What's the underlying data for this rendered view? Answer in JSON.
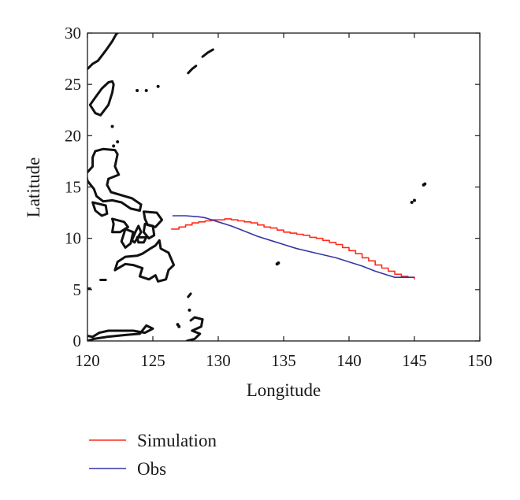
{
  "chart_data": {
    "type": "line",
    "xlabel": "Longitude",
    "ylabel": "Latitude",
    "xlim": [
      120,
      150
    ],
    "ylim": [
      0,
      30
    ],
    "xticks": [
      120,
      125,
      130,
      135,
      140,
      145,
      150
    ],
    "yticks": [
      0,
      5,
      10,
      15,
      20,
      25,
      30
    ],
    "grid": false,
    "legend_position": "bottom-left, below plot",
    "background_layer": "coastlines",
    "series": [
      {
        "name": "Simulation",
        "color": "#ff2a1a",
        "style": "stepped",
        "x": [
          126.4,
          127.0,
          127.5,
          128.0,
          128.5,
          129.0,
          129.5,
          130.0,
          130.5,
          131.0,
          131.5,
          132.0,
          132.5,
          133.0,
          133.5,
          134.0,
          134.5,
          135.0,
          135.5,
          136.0,
          136.5,
          137.0,
          137.5,
          138.0,
          138.5,
          139.0,
          139.5,
          140.0,
          140.5,
          141.0,
          141.5,
          142.0,
          142.5,
          143.0,
          143.5,
          144.0,
          144.5,
          145.0
        ],
        "y": [
          10.9,
          11.1,
          11.3,
          11.5,
          11.6,
          11.7,
          11.8,
          11.8,
          11.9,
          11.8,
          11.7,
          11.6,
          11.5,
          11.3,
          11.1,
          11.0,
          10.8,
          10.6,
          10.5,
          10.4,
          10.3,
          10.1,
          10.0,
          9.8,
          9.6,
          9.4,
          9.1,
          8.8,
          8.5,
          8.1,
          7.8,
          7.4,
          7.1,
          6.8,
          6.5,
          6.3,
          6.2,
          6.0
        ]
      },
      {
        "name": "Obs",
        "color": "#3535a8",
        "style": "smooth",
        "x": [
          126.5,
          127.5,
          128.5,
          129.0,
          129.5,
          130.0,
          131.0,
          132.0,
          133.0,
          134.0,
          135.0,
          136.0,
          137.0,
          138.0,
          139.0,
          140.0,
          141.0,
          142.0,
          143.0,
          143.5,
          144.0,
          145.0
        ],
        "y": [
          12.2,
          12.2,
          12.1,
          12.0,
          11.8,
          11.6,
          11.2,
          10.7,
          10.2,
          9.8,
          9.4,
          9.0,
          8.7,
          8.4,
          8.1,
          7.7,
          7.3,
          6.8,
          6.4,
          6.2,
          6.2,
          6.2
        ]
      }
    ]
  },
  "map": {
    "coastlines": [
      {
        "name": "taiwan",
        "closed": true,
        "points": [
          [
            121.9,
            25.3
          ],
          [
            121.6,
            25.2
          ],
          [
            121.1,
            24.6
          ],
          [
            120.7,
            23.9
          ],
          [
            120.2,
            23.0
          ],
          [
            120.6,
            22.2
          ],
          [
            121.0,
            22.0
          ],
          [
            121.6,
            23.0
          ],
          [
            121.9,
            24.2
          ],
          [
            122.0,
            25.0
          ]
        ]
      },
      {
        "name": "ryukyu-1",
        "closed": false,
        "points": [
          [
            127.7,
            26.1
          ],
          [
            128.0,
            26.5
          ],
          [
            128.3,
            26.8
          ]
        ]
      },
      {
        "name": "ryukyu-2",
        "closed": false,
        "points": [
          [
            128.8,
            27.7
          ],
          [
            129.2,
            28.1
          ],
          [
            129.6,
            28.4
          ]
        ]
      },
      {
        "name": "china-coast",
        "closed": false,
        "points": [
          [
            120.0,
            26.5
          ],
          [
            120.4,
            27.0
          ],
          [
            120.8,
            27.3
          ],
          [
            121.1,
            27.8
          ],
          [
            121.4,
            28.3
          ],
          [
            121.9,
            29.2
          ],
          [
            122.2,
            29.9
          ],
          [
            122.3,
            30.0
          ]
        ]
      },
      {
        "name": "luzon",
        "closed": true,
        "points": [
          [
            120.6,
            18.5
          ],
          [
            121.2,
            18.7
          ],
          [
            122.1,
            18.6
          ],
          [
            122.3,
            18.2
          ],
          [
            122.1,
            17.0
          ],
          [
            122.4,
            16.2
          ],
          [
            121.6,
            15.8
          ],
          [
            121.5,
            15.2
          ],
          [
            121.8,
            14.5
          ],
          [
            122.6,
            14.2
          ],
          [
            123.4,
            13.9
          ],
          [
            124.1,
            13.3
          ],
          [
            124.0,
            12.7
          ],
          [
            123.3,
            12.9
          ],
          [
            122.6,
            13.5
          ],
          [
            121.9,
            13.7
          ],
          [
            121.2,
            13.6
          ],
          [
            120.7,
            14.1
          ],
          [
            120.5,
            14.8
          ],
          [
            120.0,
            15.6
          ],
          [
            119.9,
            16.3
          ],
          [
            120.4,
            17.0
          ],
          [
            120.4,
            17.9
          ]
        ]
      },
      {
        "name": "mindoro",
        "closed": true,
        "points": [
          [
            120.4,
            13.5
          ],
          [
            121.4,
            13.2
          ],
          [
            121.5,
            12.4
          ],
          [
            121.1,
            12.2
          ],
          [
            120.6,
            12.7
          ]
        ]
      },
      {
        "name": "samar",
        "closed": true,
        "points": [
          [
            124.3,
            12.6
          ],
          [
            125.3,
            12.5
          ],
          [
            125.7,
            11.8
          ],
          [
            125.2,
            11.1
          ],
          [
            124.6,
            11.3
          ],
          [
            124.4,
            11.9
          ]
        ]
      },
      {
        "name": "leyte",
        "closed": true,
        "points": [
          [
            124.4,
            11.4
          ],
          [
            125.0,
            11.2
          ],
          [
            125.1,
            10.3
          ],
          [
            124.7,
            10.0
          ],
          [
            124.3,
            10.6
          ]
        ]
      },
      {
        "name": "panay",
        "closed": true,
        "points": [
          [
            121.9,
            11.9
          ],
          [
            122.8,
            11.6
          ],
          [
            123.1,
            11.1
          ],
          [
            122.5,
            10.6
          ],
          [
            121.9,
            10.6
          ],
          [
            122.0,
            11.4
          ]
        ]
      },
      {
        "name": "negros",
        "closed": true,
        "points": [
          [
            122.9,
            10.9
          ],
          [
            123.5,
            10.6
          ],
          [
            123.3,
            9.5
          ],
          [
            122.9,
            9.1
          ],
          [
            122.6,
            9.7
          ]
        ]
      },
      {
        "name": "cebu",
        "closed": true,
        "points": [
          [
            123.9,
            11.2
          ],
          [
            124.1,
            10.6
          ],
          [
            123.6,
            9.6
          ],
          [
            123.4,
            9.8
          ],
          [
            123.7,
            10.7
          ]
        ]
      },
      {
        "name": "bohol",
        "closed": true,
        "points": [
          [
            123.8,
            10.1
          ],
          [
            124.5,
            10.1
          ],
          [
            124.3,
            9.6
          ],
          [
            123.9,
            9.6
          ]
        ]
      },
      {
        "name": "palawan",
        "closed": false,
        "points": [
          [
            119.5,
            11.4
          ],
          [
            119.9,
            10.6
          ],
          [
            119.3,
            10.0
          ],
          [
            118.6,
            9.3
          ],
          [
            117.5,
            8.4
          ]
        ]
      },
      {
        "name": "mindanao",
        "closed": true,
        "points": [
          [
            125.5,
            9.8
          ],
          [
            125.6,
            9.0
          ],
          [
            126.2,
            8.6
          ],
          [
            126.6,
            7.4
          ],
          [
            126.2,
            6.9
          ],
          [
            126.0,
            6.0
          ],
          [
            125.4,
            5.8
          ],
          [
            125.2,
            6.4
          ],
          [
            124.7,
            6.0
          ],
          [
            124.0,
            6.3
          ],
          [
            124.2,
            7.1
          ],
          [
            123.5,
            7.4
          ],
          [
            122.9,
            7.5
          ],
          [
            122.1,
            6.9
          ],
          [
            122.3,
            7.7
          ],
          [
            122.9,
            8.2
          ],
          [
            123.8,
            8.3
          ],
          [
            124.2,
            8.5
          ],
          [
            124.8,
            9.0
          ],
          [
            125.2,
            9.3
          ]
        ]
      },
      {
        "name": "sulu-1",
        "closed": false,
        "points": [
          [
            121.0,
            5.95
          ],
          [
            121.4,
            5.95
          ]
        ]
      },
      {
        "name": "sulu-2",
        "closed": false,
        "points": [
          [
            120.0,
            5.1
          ],
          [
            120.2,
            5.1
          ]
        ]
      },
      {
        "name": "borneo",
        "closed": false,
        "points": [
          [
            119.7,
            1.0
          ],
          [
            120.0,
            0.5
          ],
          [
            120.4,
            0.4
          ],
          [
            120.9,
            0.8
          ],
          [
            121.6,
            1.0
          ],
          [
            122.5,
            1.0
          ],
          [
            123.5,
            1.0
          ],
          [
            124.4,
            0.8
          ],
          [
            125.0,
            1.2
          ],
          [
            124.5,
            1.5
          ],
          [
            124.0,
            0.7
          ],
          [
            123.0,
            0.6
          ],
          [
            121.5,
            0.4
          ],
          [
            120.5,
            0.2
          ],
          [
            120.0,
            0.0
          ]
        ]
      },
      {
        "name": "halmahera",
        "closed": false,
        "points": [
          [
            127.9,
            2.0
          ],
          [
            128.2,
            2.3
          ],
          [
            128.8,
            2.1
          ],
          [
            128.7,
            1.4
          ],
          [
            128.0,
            1.0
          ],
          [
            128.6,
            0.7
          ],
          [
            128.2,
            0.2
          ],
          [
            127.6,
            0.0
          ]
        ]
      },
      {
        "name": "morotai",
        "closed": false,
        "points": [
          [
            127.7,
            4.3
          ],
          [
            127.9,
            4.6
          ]
        ]
      }
    ],
    "dots": [
      [
        123.8,
        24.4
      ],
      [
        124.5,
        24.4
      ],
      [
        125.4,
        24.8
      ],
      [
        121.9,
        20.9
      ],
      [
        122.0,
        19.0
      ],
      [
        122.3,
        19.4
      ],
      [
        126.9,
        1.6
      ],
      [
        127.0,
        1.4
      ],
      [
        134.5,
        7.5
      ],
      [
        134.6,
        7.6
      ],
      [
        144.8,
        13.5
      ],
      [
        145.0,
        13.7
      ],
      [
        145.7,
        15.2
      ],
      [
        145.8,
        15.3
      ],
      [
        127.8,
        3.0
      ]
    ]
  },
  "colors": {
    "axis": "#1a1a1a",
    "coastline": "#111111",
    "background": "#ffffff"
  }
}
